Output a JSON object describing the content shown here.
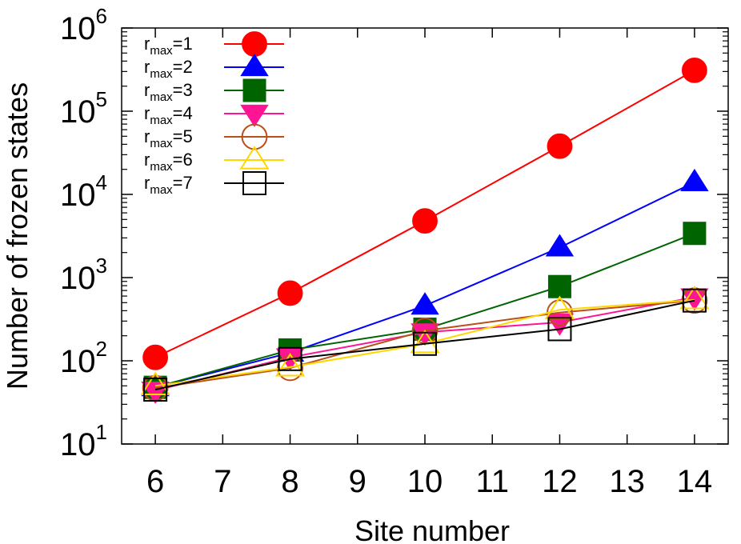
{
  "chart_data": {
    "type": "line",
    "title": "",
    "xlabel": "Site number",
    "ylabel": "Number of frozen states",
    "xlim": [
      5.5,
      14.5
    ],
    "ylim": [
      10,
      1000000
    ],
    "y_scale": "log",
    "grid": false,
    "legend_position": "top-left",
    "x_ticks": [
      6,
      7,
      8,
      9,
      10,
      11,
      12,
      13,
      14
    ],
    "y_ticks": [
      {
        "base": "10",
        "exp": "1",
        "value": 10
      },
      {
        "base": "10",
        "exp": "2",
        "value": 100
      },
      {
        "base": "10",
        "exp": "3",
        "value": 1000
      },
      {
        "base": "10",
        "exp": "4",
        "value": 10000
      },
      {
        "base": "10",
        "exp": "5",
        "value": 100000
      },
      {
        "base": "10",
        "exp": "6",
        "value": 1000000
      }
    ],
    "x": [
      6,
      8,
      10,
      12,
      14
    ],
    "series": [
      {
        "label_base": "r",
        "label_sub": "max",
        "label_suffix": "=1",
        "color": "#ff0000",
        "marker": "circle-filled",
        "values": [
          110,
          650,
          4800,
          38000,
          310000
        ]
      },
      {
        "label_base": "r",
        "label_sub": "max",
        "label_suffix": "=2",
        "color": "#0000ff",
        "marker": "triangle-up-filled",
        "values": [
          48,
          125,
          460,
          2300,
          14000
        ]
      },
      {
        "label_base": "r",
        "label_sub": "max",
        "label_suffix": "=3",
        "color": "#006400",
        "marker": "square-filled",
        "values": [
          48,
          135,
          240,
          780,
          3400
        ]
      },
      {
        "label_base": "r",
        "label_sub": "max",
        "label_suffix": "=4",
        "color": "#ff1493",
        "marker": "triangle-down-filled",
        "values": [
          44,
          110,
          220,
          290,
          580
        ]
      },
      {
        "label_base": "r",
        "label_sub": "max",
        "label_suffix": "=5",
        "color": "#b8501a",
        "marker": "circle-open",
        "values": [
          47,
          82,
          230,
          380,
          530
        ]
      },
      {
        "label_base": "r",
        "label_sub": "max",
        "label_suffix": "=6",
        "color": "#ffd700",
        "marker": "triangle-up-open",
        "values": [
          50,
          84,
          160,
          410,
          540
        ]
      },
      {
        "label_base": "r",
        "label_sub": "max",
        "label_suffix": "=7",
        "color": "#000000",
        "marker": "square-open",
        "values": [
          45,
          105,
          160,
          240,
          530
        ]
      }
    ]
  }
}
